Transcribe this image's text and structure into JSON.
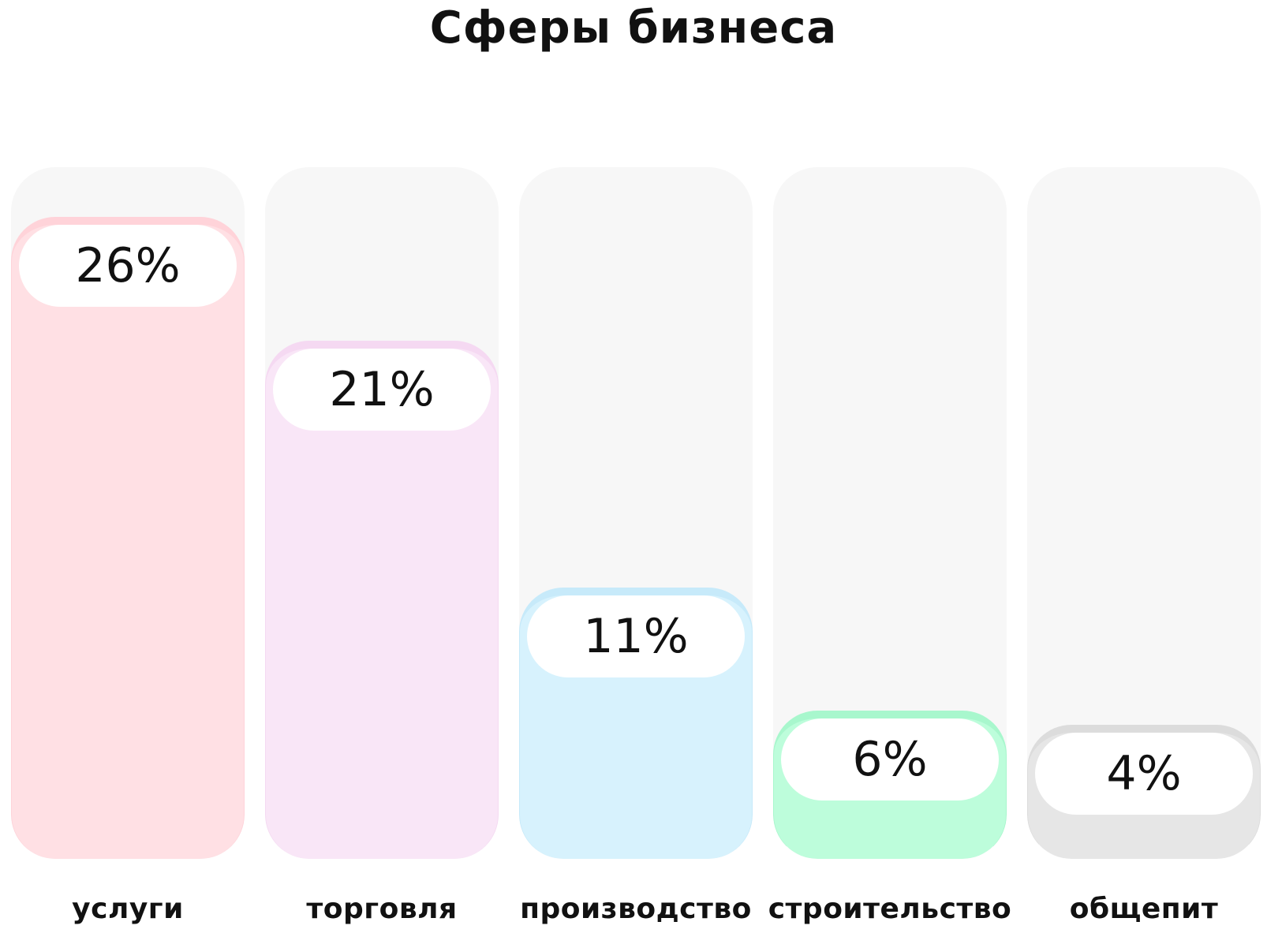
{
  "chart_data": {
    "type": "bar",
    "title": "Сферы бизнеса",
    "categories": [
      "услуги",
      "торговля",
      "производство",
      "строительство",
      "общепит"
    ],
    "values": [
      26,
      21,
      11,
      6,
      4
    ],
    "value_labels": [
      "26%",
      "21%",
      "11%",
      "6%",
      "4%"
    ],
    "unit": "%",
    "ylim": [
      0,
      30
    ],
    "grid": false,
    "legend": "none",
    "track_color": "#F7F7F7",
    "fill_colors": [
      "#FFE0E4",
      "#F9E6F7",
      "#D7F2FD",
      "#BDFDDB",
      "#E6E6E6"
    ],
    "edge_colors": [
      "#FFD3D9",
      "#F5D9F2",
      "#C7EAFA",
      "#A8F7CD",
      "#DCDCDC"
    ]
  }
}
